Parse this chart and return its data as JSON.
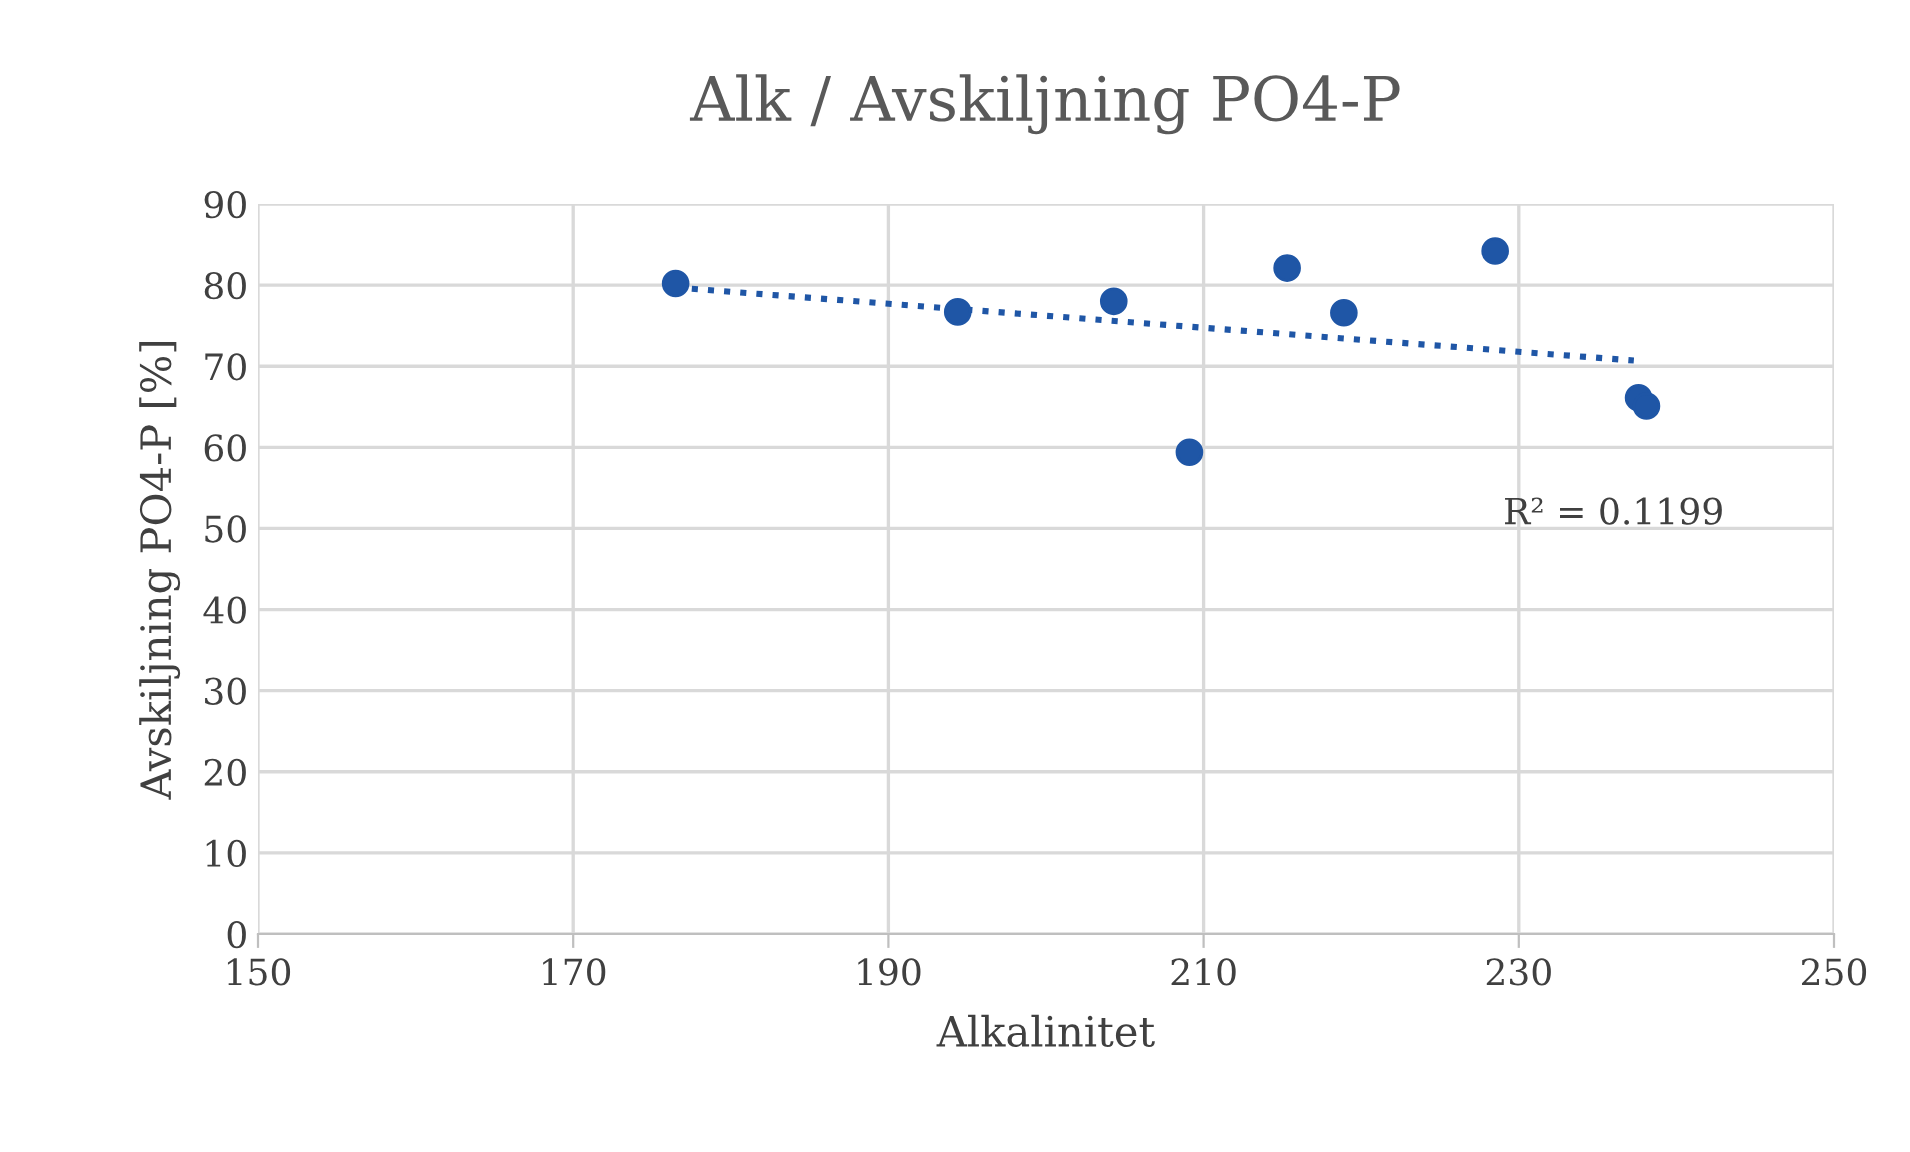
{
  "chart_data": {
    "type": "scatter",
    "title": "Alk / Avskiljning PO4-P",
    "xlabel": "Alkalinitet",
    "ylabel": "Avskiljning PO4-P [%]",
    "xlim": [
      150,
      250
    ],
    "xticks": [
      150,
      170,
      190,
      210,
      230,
      250
    ],
    "ylim": [
      0,
      90
    ],
    "yticks": [
      0,
      10,
      20,
      30,
      40,
      50,
      60,
      70,
      80,
      90
    ],
    "grid": true,
    "legend": false,
    "series": [
      {
        "color": "#1f56a6",
        "marker": "circle",
        "x": [
          176.5,
          194.4,
          204.3,
          209.1,
          215.3,
          218.9,
          228.5,
          237.6,
          238.1
        ],
        "values": [
          80.2,
          76.7,
          78.0,
          59.4,
          82.1,
          76.6,
          84.2,
          66.1,
          65.1
        ]
      },
      {
        "type": "line",
        "color": "#1f56a6",
        "line_style": "dotted",
        "marker": "none",
        "x": [
          176.5,
          237.3
        ],
        "values": [
          79.7,
          70.7
        ]
      }
    ],
    "annotations": [
      "R² = 0.1199"
    ]
  }
}
